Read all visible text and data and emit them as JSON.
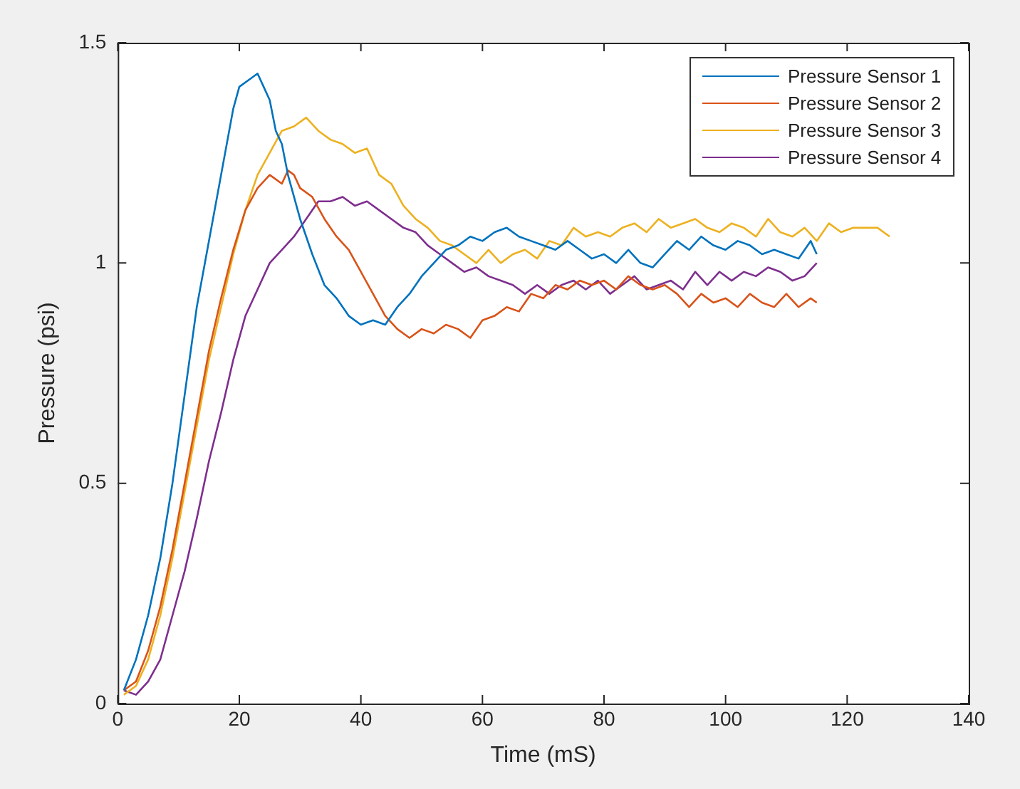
{
  "chart_data": {
    "type": "line",
    "xlabel": "Time (mS)",
    "ylabel": "Pressure (psi)",
    "xlim": [
      0,
      140
    ],
    "xticks": [
      0,
      20,
      40,
      60,
      80,
      100,
      120,
      140
    ],
    "ylim": [
      0,
      1.5
    ],
    "yticks": [
      0,
      0.5,
      1,
      1.5
    ],
    "grid": false,
    "legend": "top right",
    "marker": "none",
    "line_style": "solid",
    "series": [
      {
        "name": "Pressure Sensor 1",
        "color": "#0072bd",
        "x": [
          1,
          3,
          5,
          7,
          9,
          11,
          13,
          15,
          17,
          19,
          20,
          22,
          23,
          24,
          25,
          26,
          27,
          28,
          30,
          32,
          34,
          36,
          38,
          40,
          42,
          44,
          46,
          48,
          50,
          52,
          54,
          56,
          58,
          60,
          62,
          64,
          66,
          68,
          70,
          72,
          74,
          76,
          78,
          80,
          82,
          84,
          86,
          88,
          90,
          92,
          94,
          96,
          98,
          100,
          102,
          104,
          106,
          108,
          110,
          112,
          114,
          115
        ],
        "values": [
          0.03,
          0.1,
          0.2,
          0.33,
          0.5,
          0.7,
          0.9,
          1.05,
          1.2,
          1.35,
          1.4,
          1.42,
          1.43,
          1.4,
          1.37,
          1.3,
          1.27,
          1.2,
          1.1,
          1.02,
          0.95,
          0.92,
          0.88,
          0.86,
          0.87,
          0.86,
          0.9,
          0.93,
          0.97,
          1.0,
          1.03,
          1.04,
          1.06,
          1.05,
          1.07,
          1.08,
          1.06,
          1.05,
          1.04,
          1.03,
          1.05,
          1.03,
          1.01,
          1.02,
          1.0,
          1.03,
          1.0,
          0.99,
          1.02,
          1.05,
          1.03,
          1.06,
          1.04,
          1.03,
          1.05,
          1.04,
          1.02,
          1.03,
          1.02,
          1.01,
          1.05,
          1.02
        ]
      },
      {
        "name": "Pressure Sensor 2",
        "color": "#d95319",
        "x": [
          1,
          3,
          5,
          7,
          9,
          11,
          13,
          15,
          17,
          19,
          21,
          23,
          25,
          27,
          28,
          29,
          30,
          32,
          34,
          36,
          38,
          40,
          42,
          44,
          46,
          48,
          50,
          52,
          54,
          56,
          58,
          60,
          62,
          64,
          66,
          68,
          70,
          72,
          74,
          76,
          78,
          80,
          82,
          84,
          86,
          88,
          90,
          92,
          94,
          96,
          98,
          100,
          102,
          104,
          106,
          108,
          110,
          112,
          114,
          115
        ],
        "values": [
          0.03,
          0.05,
          0.12,
          0.22,
          0.35,
          0.5,
          0.65,
          0.8,
          0.92,
          1.03,
          1.12,
          1.17,
          1.2,
          1.18,
          1.21,
          1.2,
          1.17,
          1.15,
          1.1,
          1.06,
          1.03,
          0.98,
          0.93,
          0.88,
          0.85,
          0.83,
          0.85,
          0.84,
          0.86,
          0.85,
          0.83,
          0.87,
          0.88,
          0.9,
          0.89,
          0.93,
          0.92,
          0.95,
          0.94,
          0.96,
          0.95,
          0.96,
          0.94,
          0.97,
          0.95,
          0.94,
          0.95,
          0.93,
          0.9,
          0.93,
          0.91,
          0.92,
          0.9,
          0.93,
          0.91,
          0.9,
          0.93,
          0.9,
          0.92,
          0.91
        ]
      },
      {
        "name": "Pressure Sensor 3",
        "color": "#edb120",
        "x": [
          1,
          3,
          5,
          7,
          9,
          11,
          13,
          15,
          17,
          19,
          21,
          23,
          25,
          27,
          29,
          31,
          33,
          35,
          37,
          39,
          41,
          43,
          45,
          47,
          49,
          51,
          53,
          55,
          57,
          59,
          61,
          63,
          65,
          67,
          69,
          71,
          73,
          75,
          77,
          79,
          81,
          83,
          85,
          87,
          89,
          91,
          93,
          95,
          97,
          99,
          101,
          103,
          105,
          107,
          109,
          111,
          113,
          115,
          117,
          119,
          121,
          123,
          125,
          127
        ],
        "values": [
          0.02,
          0.04,
          0.1,
          0.2,
          0.33,
          0.48,
          0.63,
          0.78,
          0.9,
          1.02,
          1.12,
          1.2,
          1.25,
          1.3,
          1.31,
          1.33,
          1.3,
          1.28,
          1.27,
          1.25,
          1.26,
          1.2,
          1.18,
          1.13,
          1.1,
          1.08,
          1.05,
          1.04,
          1.02,
          1.0,
          1.03,
          1.0,
          1.02,
          1.03,
          1.01,
          1.05,
          1.04,
          1.08,
          1.06,
          1.07,
          1.06,
          1.08,
          1.09,
          1.07,
          1.1,
          1.08,
          1.09,
          1.1,
          1.08,
          1.07,
          1.09,
          1.08,
          1.06,
          1.1,
          1.07,
          1.06,
          1.08,
          1.05,
          1.09,
          1.07,
          1.08,
          1.08,
          1.08,
          1.06
        ]
      },
      {
        "name": "Pressure Sensor 4",
        "color": "#7e2f8e",
        "x": [
          1,
          3,
          5,
          7,
          9,
          11,
          13,
          15,
          17,
          19,
          21,
          23,
          25,
          27,
          29,
          31,
          33,
          35,
          37,
          39,
          41,
          43,
          45,
          47,
          49,
          51,
          53,
          55,
          57,
          59,
          61,
          63,
          65,
          67,
          69,
          71,
          73,
          75,
          77,
          79,
          81,
          83,
          85,
          87,
          89,
          91,
          93,
          95,
          97,
          99,
          101,
          103,
          105,
          107,
          109,
          111,
          113,
          115
        ],
        "values": [
          0.03,
          0.02,
          0.05,
          0.1,
          0.2,
          0.3,
          0.42,
          0.55,
          0.66,
          0.78,
          0.88,
          0.94,
          1.0,
          1.03,
          1.06,
          1.1,
          1.14,
          1.14,
          1.15,
          1.13,
          1.14,
          1.12,
          1.1,
          1.08,
          1.07,
          1.04,
          1.02,
          1.0,
          0.98,
          0.99,
          0.97,
          0.96,
          0.95,
          0.93,
          0.95,
          0.93,
          0.95,
          0.96,
          0.94,
          0.96,
          0.93,
          0.95,
          0.97,
          0.94,
          0.95,
          0.96,
          0.94,
          0.98,
          0.95,
          0.98,
          0.96,
          0.98,
          0.97,
          0.99,
          0.98,
          0.96,
          0.97,
          1.0
        ]
      }
    ]
  }
}
